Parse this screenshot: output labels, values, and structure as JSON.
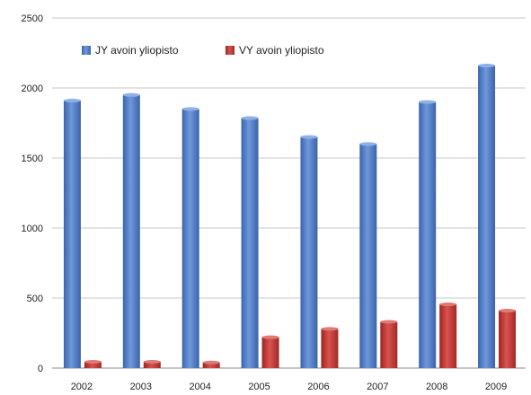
{
  "chart_data": {
    "type": "bar",
    "title": "",
    "xlabel": "",
    "ylabel": "",
    "categories": [
      "2002",
      "2003",
      "2004",
      "2005",
      "2006",
      "2007",
      "2008",
      "2009"
    ],
    "series": [
      {
        "name": "JY avoin yliopisto",
        "values": [
          1910,
          1950,
          1850,
          1785,
          1650,
          1600,
          1900,
          2160
        ],
        "color": "#4a78c4"
      },
      {
        "name": "VY avoin yliopisto",
        "values": [
          45,
          45,
          40,
          220,
          280,
          330,
          455,
          410
        ],
        "color": "#c0392b"
      }
    ],
    "ylim": [
      0,
      2500
    ],
    "yticks": [
      "0",
      "500",
      "1000",
      "1500",
      "2000",
      "2500"
    ],
    "grid": true,
    "legend_position": "top-left"
  }
}
